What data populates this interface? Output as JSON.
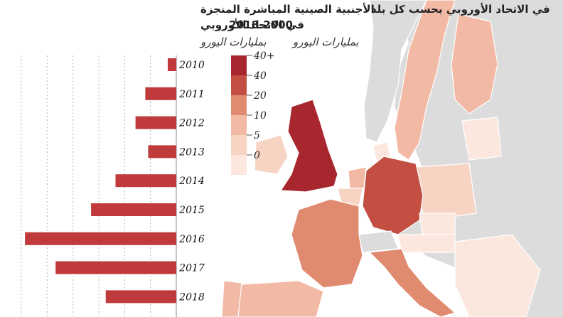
{
  "left_title_line1": "الأجنبية الصينية المباشرة المنجزة",
  "left_title_line2": "في الاتحاد الأوروبي",
  "left_unit": "بمليارات اليورو",
  "right_title_line1": "في الاتحاد الأوروبي بحسب كل بلد",
  "right_title_line2": "2018-2000",
  "right_unit": "بمليارات اليورو",
  "colors": {
    "bar": "#c0393b",
    "c40plus": "#a8262e",
    "c40": "#c24f42",
    "c20": "#e08a70",
    "c10": "#f2b9a4",
    "c5": "#f7d3c4",
    "c0": "#fbe7de",
    "land_other": "#dcdcdc"
  },
  "legend": {
    "title": "",
    "items": [
      {
        "label": "40+",
        "color_key": "c40plus"
      },
      {
        "label": "40",
        "color_key": "c40"
      },
      {
        "label": "20",
        "color_key": "c20"
      },
      {
        "label": "10",
        "color_key": "c10"
      },
      {
        "label": "5",
        "color_key": "c5"
      },
      {
        "label": "0",
        "color_key": "c0"
      }
    ]
  },
  "map_regions": [
    {
      "name": "uk",
      "color_key": "c40plus"
    },
    {
      "name": "ireland",
      "color_key": "c5"
    },
    {
      "name": "germany",
      "color_key": "c40"
    },
    {
      "name": "france",
      "color_key": "c20"
    },
    {
      "name": "italy",
      "color_key": "c20"
    },
    {
      "name": "netherlands",
      "color_key": "c10"
    },
    {
      "name": "belgium",
      "color_key": "c5"
    },
    {
      "name": "sweden",
      "color_key": "c10"
    },
    {
      "name": "finland",
      "color_key": "c10"
    },
    {
      "name": "norway",
      "color_key": "land_other"
    },
    {
      "name": "switzerland",
      "color_key": "land_other"
    },
    {
      "name": "poland",
      "color_key": "c5"
    },
    {
      "name": "spain",
      "color_key": "c10"
    },
    {
      "name": "portugal",
      "color_key": "c10"
    },
    {
      "name": "austria",
      "color_key": "c0"
    },
    {
      "name": "czechia",
      "color_key": "c0"
    },
    {
      "name": "balkans",
      "color_key": "c0"
    },
    {
      "name": "denmark",
      "color_key": "c0"
    },
    {
      "name": "baltics",
      "color_key": "c0"
    }
  ],
  "chart_data": {
    "type": "bar",
    "orientation": "horizontal",
    "categories": [
      "2010",
      "2011",
      "2012",
      "2013",
      "2014",
      "2015",
      "2016",
      "2017",
      "2018"
    ],
    "values": [
      2.1,
      7.6,
      10,
      6.9,
      14.9,
      20.9,
      37.1,
      29.6,
      17.3
    ],
    "title": "الأجنبية الصينية المباشرة المنجزة في الاتحاد الأوروبي",
    "xlabel": "بمليارات اليورو",
    "ylabel": "",
    "xlim": [
      0,
      38
    ],
    "grid": true
  }
}
